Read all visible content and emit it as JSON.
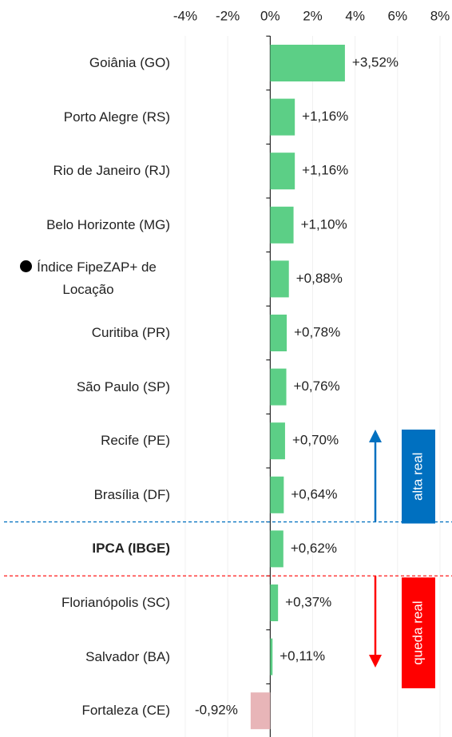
{
  "chart_data": {
    "type": "bar",
    "orientation": "horizontal",
    "categories": [
      "Goiânia (GO)",
      "Porto Alegre (RS)",
      "Rio de Janeiro (RJ)",
      "Belo Horizonte (MG)",
      "Índice FipeZAP+ de Locação",
      "Curitiba (PR)",
      "São Paulo (SP)",
      "Recife (PE)",
      "Brasília (DF)",
      "IPCA (IBGE)",
      "Florianópolis (SC)",
      "Salvador (BA)",
      "Fortaleza (CE)"
    ],
    "values": [
      3.52,
      1.16,
      1.16,
      1.1,
      0.88,
      0.78,
      0.76,
      0.7,
      0.64,
      0.62,
      0.37,
      0.11,
      -0.92
    ],
    "value_labels": [
      "+3,52%",
      "+1,16%",
      "+1,16%",
      "+1,10%",
      "+0,88%",
      "+0,78%",
      "+0,76%",
      "+0,70%",
      "+0,64%",
      "+0,62%",
      "+0,37%",
      "+0,11%",
      "-0,92%"
    ],
    "colors": [
      "#5ccf86",
      "#5ccf86",
      "#5ccf86",
      "#5ccf86",
      "#5ccf86",
      "#5ccf86",
      "#5ccf86",
      "#5ccf86",
      "#5ccf86",
      "#5ccf86",
      "#5ccf86",
      "#5ccf86",
      "#e8b5b8"
    ],
    "xlim": [
      -4,
      8
    ],
    "xticks": [
      {
        "value": -4,
        "label": "-4%"
      },
      {
        "value": -2,
        "label": "-2%"
      },
      {
        "value": 0,
        "label": "0%"
      },
      {
        "value": 2,
        "label": "2%"
      },
      {
        "value": 4,
        "label": "4%"
      },
      {
        "value": 6,
        "label": "6%"
      },
      {
        "value": 8,
        "label": "8%"
      }
    ],
    "grid": true,
    "annotations": [
      {
        "text": "alta real",
        "color": "#0070c0"
      },
      {
        "text": "queda real",
        "color": "#ff0000"
      }
    ]
  }
}
